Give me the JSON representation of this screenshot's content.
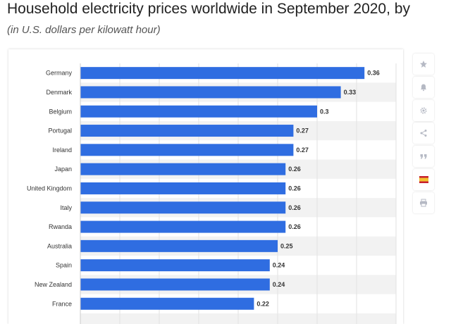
{
  "title": "Household electricity prices worldwide in September 2020, by",
  "subtitle": "(in U.S. dollars per kilowatt hour)",
  "toolbar": {
    "icons": [
      "star-icon",
      "bell-icon",
      "gear-icon",
      "share-icon",
      "quote-icon",
      "flag-spain-icon",
      "print-icon"
    ]
  },
  "colors": {
    "bar": "#2f6de1",
    "stripe": "#f2f2f2",
    "icon": "#b5b9c4"
  },
  "chart_data": {
    "type": "bar",
    "orientation": "horizontal",
    "categories": [
      "Germany",
      "Denmark",
      "Belgium",
      "Portugal",
      "Ireland",
      "Japan",
      "United Kingdom",
      "Italy",
      "Rwanda",
      "Australia",
      "Spain",
      "New Zealand",
      "France"
    ],
    "values": [
      0.36,
      0.33,
      0.3,
      0.27,
      0.27,
      0.26,
      0.26,
      0.26,
      0.26,
      0.25,
      0.24,
      0.24,
      0.22
    ],
    "value_labels": [
      "0.36",
      "0.33",
      "0.3",
      "0.27",
      "0.27",
      "0.26",
      "0.26",
      "0.26",
      "0.26",
      "0.25",
      "0.24",
      "0.24",
      "0.22"
    ],
    "xlim": [
      0,
      0.4
    ],
    "grid": true,
    "title": "",
    "xlabel": "",
    "ylabel": ""
  }
}
